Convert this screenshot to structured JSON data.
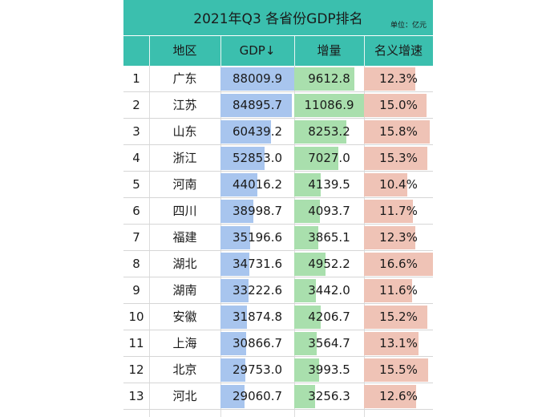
{
  "table": {
    "title": "2021年Q3 各省份GDP排名",
    "unit": "单位：亿元",
    "headers": [
      "",
      "地区",
      "GDP↓",
      "增量",
      "名义增速"
    ],
    "rows": [
      {
        "rank": "1",
        "region": "广东",
        "gdp": "88009.9",
        "increase": "9612.8",
        "rate": "12.3%",
        "gdp_value": 88009.9,
        "increase_value": 9612.8,
        "rate_value": 12.3
      },
      {
        "rank": "2",
        "region": "江苏",
        "gdp": "84895.7",
        "increase": "11086.9",
        "rate": "15.0%",
        "gdp_value": 84895.7,
        "increase_value": 11086.9,
        "rate_value": 15.0
      },
      {
        "rank": "3",
        "region": "山东",
        "gdp": "60439.2",
        "increase": "8253.2",
        "rate": "15.8%",
        "gdp_value": 60439.2,
        "increase_value": 8253.2,
        "rate_value": 15.8
      },
      {
        "rank": "4",
        "region": "浙江",
        "gdp": "52853.0",
        "increase": "7027.0",
        "rate": "15.3%",
        "gdp_value": 52853.0,
        "increase_value": 7027.0,
        "rate_value": 15.3
      },
      {
        "rank": "5",
        "region": "河南",
        "gdp": "44016.2",
        "increase": "4139.5",
        "rate": "10.4%",
        "gdp_value": 44016.2,
        "increase_value": 4139.5,
        "rate_value": 10.4
      },
      {
        "rank": "6",
        "region": "四川",
        "gdp": "38998.7",
        "increase": "4093.7",
        "rate": "11.7%",
        "gdp_value": 38998.7,
        "increase_value": 4093.7,
        "rate_value": 11.7
      },
      {
        "rank": "7",
        "region": "福建",
        "gdp": "35196.6",
        "increase": "3865.1",
        "rate": "12.3%",
        "gdp_value": 35196.6,
        "increase_value": 3865.1,
        "rate_value": 12.3
      },
      {
        "rank": "8",
        "region": "湖北",
        "gdp": "34731.6",
        "increase": "4952.2",
        "rate": "16.6%",
        "gdp_value": 34731.6,
        "increase_value": 4952.2,
        "rate_value": 16.6
      },
      {
        "rank": "9",
        "region": "湖南",
        "gdp": "33222.6",
        "increase": "3442.0",
        "rate": "11.6%",
        "gdp_value": 33222.6,
        "increase_value": 3442.0,
        "rate_value": 11.6
      },
      {
        "rank": "10",
        "region": "安徽",
        "gdp": "31874.8",
        "increase": "4206.7",
        "rate": "15.2%",
        "gdp_value": 31874.8,
        "increase_value": 4206.7,
        "rate_value": 15.2
      },
      {
        "rank": "11",
        "region": "上海",
        "gdp": "30866.7",
        "increase": "3564.7",
        "rate": "13.1%",
        "gdp_value": 30866.7,
        "increase_value": 3564.7,
        "rate_value": 13.1
      },
      {
        "rank": "12",
        "region": "北京",
        "gdp": "29753.0",
        "increase": "3993.5",
        "rate": "15.5%",
        "gdp_value": 29753.0,
        "increase_value": 3993.5,
        "rate_value": 15.5
      },
      {
        "rank": "13",
        "region": "河北",
        "gdp": "29060.7",
        "increase": "3256.3",
        "rate": "12.6%",
        "gdp_value": 29060.7,
        "increase_value": 3256.3,
        "rate_value": 12.6
      }
    ]
  },
  "colors": {
    "header_bg": "#3bbfae",
    "gdp_bar": "#a8c5ee",
    "increase_bar": "#a9dfad",
    "rate_bar": "#efc3b6"
  }
}
